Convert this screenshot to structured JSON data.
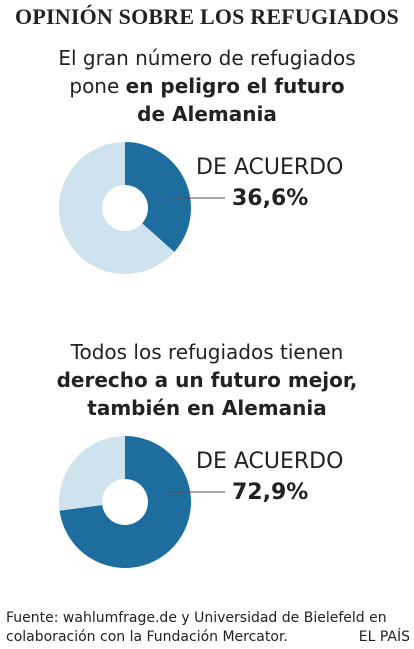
{
  "title": "OPINIÓN SOBRE LOS REFUGIADOS",
  "colors": {
    "agree": "#1d6d9e",
    "rest": "#cfe3ee"
  },
  "chart_data": [
    {
      "type": "pie",
      "statement": {
        "line1_regular": "El gran número de refugiados",
        "line2_regular": "pone ",
        "line2_bold": "en peligro el futuro",
        "line3_bold": "de Alemania"
      },
      "label": "DE ACUERDO",
      "value_text": "36,6%",
      "slices": [
        {
          "name": "DE ACUERDO",
          "value": 36.6
        },
        {
          "name": "",
          "value": 63.4
        }
      ]
    },
    {
      "type": "pie",
      "statement": {
        "line1_regular": "Todos los refugiados tienen",
        "line2_bold": "derecho a un futuro mejor,",
        "line3_bold": "también en Alemania"
      },
      "label": "DE ACUERDO",
      "value_text": "72,9%",
      "slices": [
        {
          "name": "DE ACUERDO",
          "value": 72.9
        },
        {
          "name": "",
          "value": 27.1
        }
      ]
    }
  ],
  "footer": {
    "line1": "Fuente: wahlumfrage.de y Universidad de Bielefeld en",
    "line2": "colaboración con la Fundación Mercator.",
    "brand": "EL PAÍS"
  }
}
